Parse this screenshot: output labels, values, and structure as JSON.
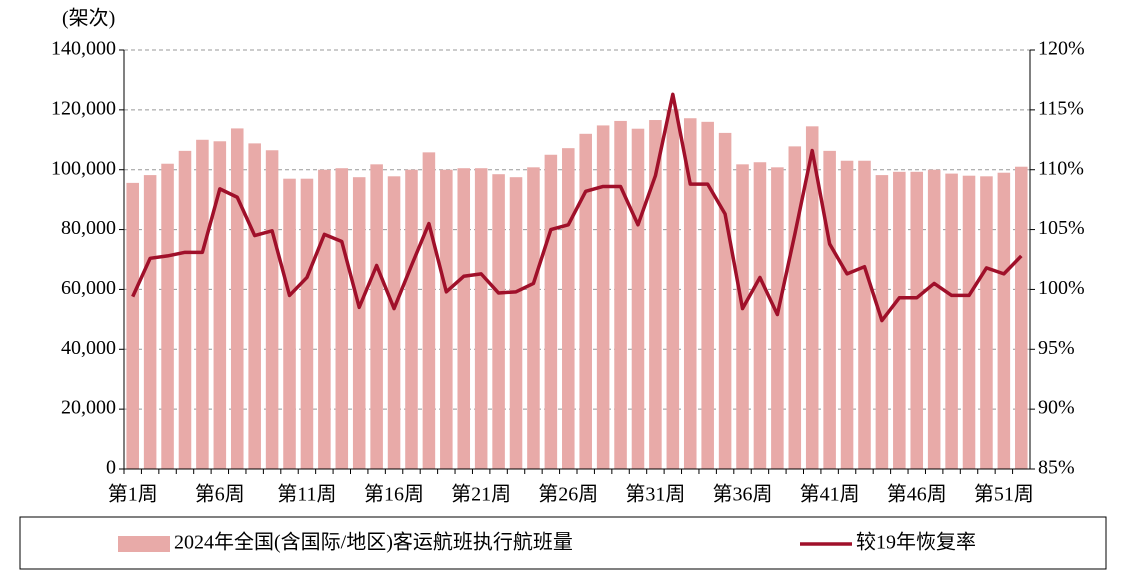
{
  "chart_data": {
    "type": "bar-line",
    "y_label": "(架次)",
    "categories": [
      "第1周",
      null,
      null,
      null,
      null,
      "第6周",
      null,
      null,
      null,
      null,
      "第11周",
      null,
      null,
      null,
      null,
      "第16周",
      null,
      null,
      null,
      null,
      "第21周",
      null,
      null,
      null,
      null,
      "第26周",
      null,
      null,
      null,
      null,
      "第31周",
      null,
      null,
      null,
      null,
      "第36周",
      null,
      null,
      null,
      null,
      "第41周",
      null,
      null,
      null,
      null,
      "第46周",
      null,
      null,
      null,
      null,
      "第51周",
      null
    ],
    "series": [
      {
        "name": "2024年全国(含国际/地区)客运航班执行航班量",
        "type": "bar",
        "color": "#e8aaa8",
        "values": [
          95600,
          98200,
          102000,
          106300,
          110000,
          109500,
          113800,
          108800,
          106500,
          97000,
          97000,
          100000,
          100500,
          97500,
          101800,
          97800,
          100000,
          105800,
          100000,
          100500,
          100500,
          98500,
          97500,
          100800,
          105000,
          107200,
          112000,
          114800,
          116300,
          113700,
          116600,
          120000,
          117200,
          116000,
          112300,
          101800,
          102500,
          100800,
          107800,
          114500,
          106300,
          103000,
          103000,
          98200,
          99300,
          99300,
          100000,
          98700,
          98000,
          97800,
          99000,
          101000
        ]
      },
      {
        "name": "较19年恢复率",
        "type": "line",
        "axis": "y2",
        "color": "#a0102a",
        "values": [
          99.4,
          102.6,
          102.8,
          103.1,
          103.1,
          108.4,
          107.7,
          104.5,
          104.9,
          99.5,
          101.0,
          104.6,
          104.0,
          98.5,
          102.0,
          98.4,
          102.0,
          105.5,
          99.8,
          101.1,
          101.3,
          99.7,
          99.8,
          100.5,
          105.0,
          105.4,
          108.2,
          108.6,
          108.6,
          105.4,
          109.5,
          116.3,
          108.8,
          108.8,
          106.3,
          98.4,
          101.0,
          97.9,
          104.6,
          111.6,
          103.8,
          101.3,
          101.9,
          97.4,
          99.3,
          99.3,
          100.5,
          99.5,
          99.5,
          101.8,
          101.3,
          102.8
        ]
      }
    ],
    "ylim": [
      0,
      140000
    ],
    "yticks": [
      0,
      {
        "value": 20000,
        "label": "20,000"
      },
      {
        "value": 40000,
        "label": "40,000"
      },
      {
        "value": 60000,
        "label": "60,000"
      },
      {
        "value": 80000,
        "label": "80,000"
      },
      {
        "value": 100000,
        "label": "100,000"
      },
      {
        "value": 120000,
        "label": "120,000"
      },
      {
        "value": 140000,
        "label": "140,000"
      }
    ],
    "y2lim": [
      85,
      120
    ],
    "y2ticks": [
      {
        "value": 85,
        "label": "85%"
      },
      {
        "value": 90,
        "label": "90%"
      },
      {
        "value": 95,
        "label": "95%"
      },
      {
        "value": 100,
        "label": "100%"
      },
      {
        "value": 105,
        "label": "105%"
      },
      {
        "value": 110,
        "label": "110%"
      },
      {
        "value": 115,
        "label": "115%"
      },
      {
        "value": 120,
        "label": "120%"
      }
    ],
    "grid": true,
    "legend": "bottom"
  }
}
